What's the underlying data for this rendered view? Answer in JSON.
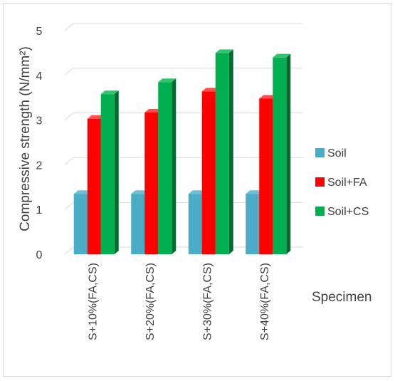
{
  "chart_data": {
    "type": "bar",
    "categories": [
      "S+10%(FA,CS)",
      "S+20%(FA,CS)",
      "S+30%(FA,CS)",
      "S+40%(FA,CS)"
    ],
    "series": [
      {
        "name": "Soil",
        "values": [
          1.35,
          1.35,
          1.35,
          1.35
        ],
        "color": "#4bacc6",
        "side_color": "#2e7f94",
        "top_color": "#6ec0d6"
      },
      {
        "name": "Soil+FA",
        "values": [
          3.03,
          3.17,
          3.64,
          3.48
        ],
        "color": "#ff0000",
        "side_color": "#a80000",
        "top_color": "#ff4d4d"
      },
      {
        "name": "Soil+CS",
        "values": [
          3.58,
          3.85,
          4.5,
          4.4
        ],
        "color": "#00b050",
        "side_color": "#006b31",
        "top_color": "#33c470"
      }
    ],
    "ylabel": "Compressive strength (N/mm²)",
    "xlabel": "Specimen",
    "ylim": [
      0,
      5
    ],
    "y_ticks": [
      "0",
      "1",
      "2",
      "3",
      "4",
      "5"
    ],
    "grid": true,
    "legend_position": "right",
    "bar_style": "3d"
  }
}
